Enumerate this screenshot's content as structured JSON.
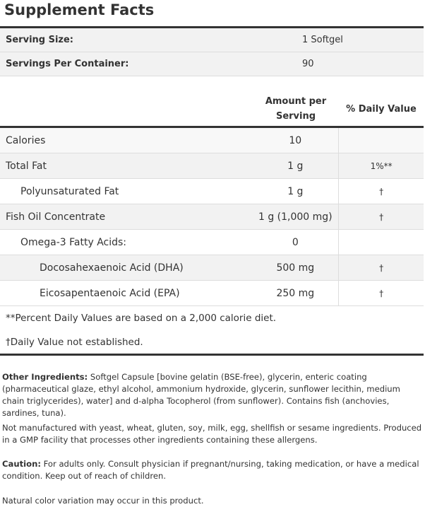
{
  "title": "Supplement Facts",
  "serving": [
    {
      "label": "Serving Size:",
      "value": "1 Softgel"
    },
    {
      "label": "Servings Per Container:",
      "value": "90"
    }
  ],
  "header": {
    "amount_line1": "Amount per",
    "amount_line2": "Serving",
    "daily_value": "% Daily Value"
  },
  "rows": [
    {
      "name": "Calories",
      "amount": "10",
      "dv": ""
    },
    {
      "name": "Total Fat",
      "amount": "1 g",
      "dv": "1%**"
    },
    {
      "name": "Polyunsaturated Fat",
      "amount": "1 g",
      "dv": "†"
    },
    {
      "name": "Fish Oil Concentrate",
      "amount": "1 g (1,000 mg)",
      "dv": "†"
    },
    {
      "name": "Omega-3 Fatty Acids:",
      "amount": "0",
      "dv": ""
    },
    {
      "name": "Docosahexaenoic Acid (DHA)",
      "amount": "500 mg",
      "dv": "†"
    },
    {
      "name": "Eicosapentaenoic Acid (EPA)",
      "amount": "250 mg",
      "dv": "†"
    }
  ],
  "footnotes": [
    "**Percent Daily Values are based on a 2,000 calorie diet.",
    "†Daily Value not established."
  ],
  "other_ingredients": {
    "label": "Other Ingredients:",
    "text": " Softgel Capsule [bovine gelatin (BSE-free), glycerin, enteric coating (pharmaceutical glaze, ethyl alcohol, ammonium hydroxide, glycerin, sunflower lecithin, medium chain triglycerides), water] and d-alpha Tocopherol (from sunflower). Contains fish (anchovies, sardines, tuna)."
  },
  "allergen_note": "Not manufactured with yeast, wheat, gluten, soy, milk, egg, shellfish or sesame ingredients. Produced in a GMP facility that processes other ingredients containing these allergens.",
  "caution": {
    "label": "Caution:",
    "text": " For adults only. Consult physician if pregnant/nursing, taking medication, or have a medical condition. Keep out of reach of children."
  },
  "color_note": "Natural color variation may occur in this product."
}
